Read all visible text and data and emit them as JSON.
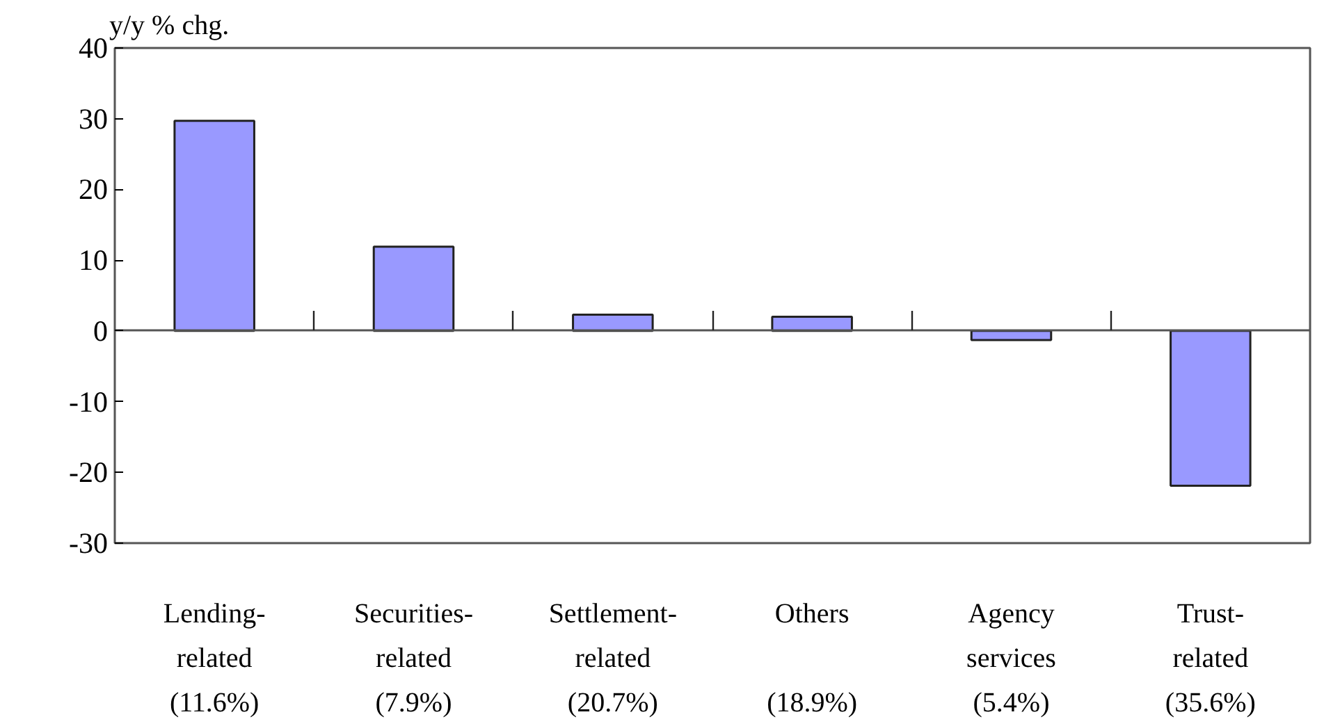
{
  "chart_data": {
    "type": "bar",
    "ylabel": "y/y % chg.",
    "categories": [
      "Lending-\nrelated\n(11.6%)",
      "Securities-\nrelated\n(7.9%)",
      "Settlement-\nrelated\n(20.7%)",
      "Others\n\n(18.9%)",
      "Agency\nservices\n(5.4%)",
      "Trust-\nrelated\n(35.6%)"
    ],
    "values": [
      29.7,
      11.9,
      2.3,
      2.0,
      -1.3,
      -21.9
    ],
    "color": "#9999ff",
    "ylim": [
      -30,
      40
    ],
    "yticks": [
      -30,
      -20,
      -10,
      0,
      10,
      20,
      30,
      40
    ]
  }
}
